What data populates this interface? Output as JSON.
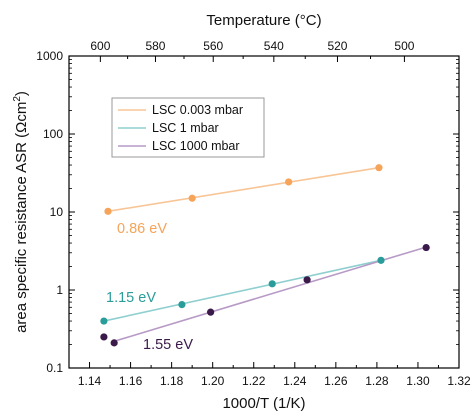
{
  "chart_data": {
    "type": "scatter",
    "xlabel": "1000/T (1/K)",
    "ylabel": "area specific resistance ASR (Ωcm²)",
    "ylabel_parts": {
      "main": "area specific resistance ASR (Ωcm",
      "sup": "2",
      "tail": ")"
    },
    "x2label": "Temperature (°C)",
    "xlim": [
      1.13,
      1.32
    ],
    "ylim": [
      0.1,
      1000
    ],
    "yscale": "log",
    "grid": false,
    "legend": "top-left",
    "x_ticks": [
      1.14,
      1.16,
      1.18,
      1.2,
      1.22,
      1.24,
      1.26,
      1.28,
      1.3,
      1.32
    ],
    "x_tick_labels": [
      "1.14",
      "1.16",
      "1.18",
      "1.20",
      "1.22",
      "1.24",
      "1.26",
      "1.28",
      "1.30",
      "1.32"
    ],
    "y_ticks": [
      0.1,
      1,
      10,
      100,
      1000
    ],
    "y_tick_labels": [
      "0.1",
      "1",
      "10",
      "100",
      "1000"
    ],
    "top_ticks_celsius": [
      600,
      580,
      560,
      540,
      520,
      500
    ],
    "top_tick_labels": [
      "600",
      "580",
      "560",
      "540",
      "520",
      "500"
    ],
    "series": [
      {
        "name": "LSC 0.003 mbar",
        "color": "#f5a45a",
        "line_color": "#f8c596",
        "x": [
          1.149,
          1.19,
          1.237,
          1.281
        ],
        "y": [
          10.2,
          15.0,
          24.3,
          37.0
        ],
        "annotation": "0.86 eV",
        "fit": {
          "x": [
            1.149,
            1.281
          ],
          "y": [
            10.2,
            37.0
          ]
        }
      },
      {
        "name": "LSC 1 mbar",
        "color": "#2a9d9a",
        "line_color": "#8fcfcf",
        "x": [
          1.147,
          1.185,
          1.229,
          1.282
        ],
        "y": [
          0.4,
          0.65,
          1.2,
          2.4
        ],
        "annotation": "1.15 eV",
        "fit": {
          "x": [
            1.147,
            1.282
          ],
          "y": [
            0.4,
            2.4
          ]
        }
      },
      {
        "name": "LSC 1000 mbar",
        "color": "#3b1a4a",
        "line_color": "#b79ac5",
        "x": [
          1.147,
          1.152,
          1.199,
          1.246,
          1.304
        ],
        "y": [
          0.25,
          0.21,
          0.52,
          1.35,
          3.5
        ],
        "annotation": "1.55 eV",
        "fit": {
          "x": [
            1.152,
            1.304
          ],
          "y": [
            0.22,
            3.55
          ]
        }
      }
    ]
  }
}
